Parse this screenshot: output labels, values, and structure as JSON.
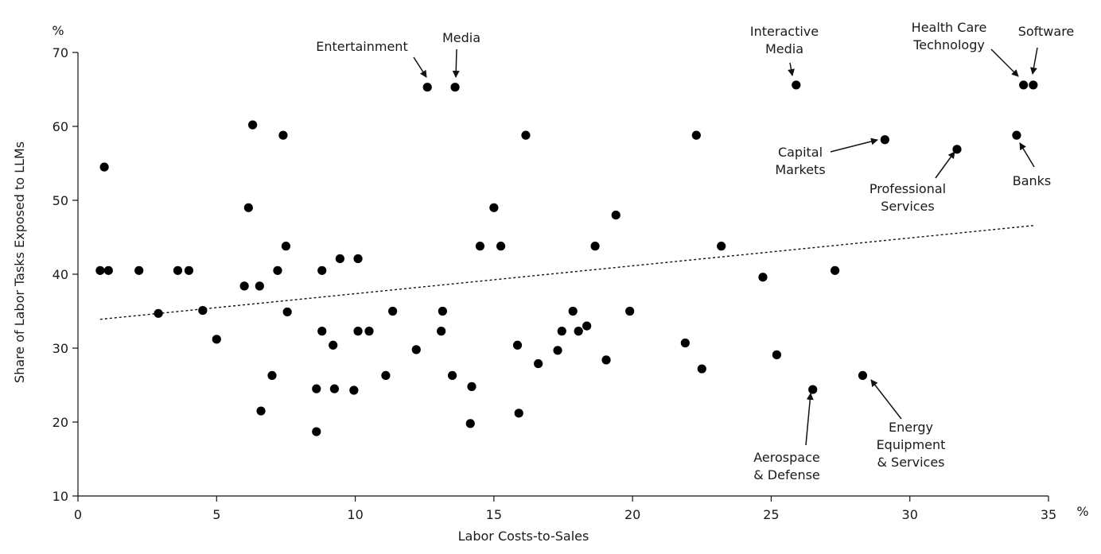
{
  "chart_data": {
    "type": "scatter",
    "title": "",
    "xlabel": "Labor Costs-to-Sales",
    "ylabel": "Share of Labor Tasks Exposed to LLMs",
    "x_unit": "%",
    "y_unit": "%",
    "xlim": [
      0,
      35
    ],
    "ylim": [
      10,
      70
    ],
    "xticks": [
      0,
      5,
      10,
      15,
      20,
      25,
      30,
      35
    ],
    "yticks": [
      10,
      20,
      30,
      40,
      50,
      60,
      70
    ],
    "grid": false,
    "legend": "none",
    "trendline": {
      "style": "dotted",
      "from": [
        0.8,
        33.9
      ],
      "to": [
        34.5,
        46.6
      ]
    },
    "points": [
      [
        0.8,
        40.5
      ],
      [
        0.95,
        54.5
      ],
      [
        1.1,
        40.5
      ],
      [
        2.2,
        40.5
      ],
      [
        2.9,
        34.7
      ],
      [
        3.6,
        40.5
      ],
      [
        4.0,
        40.5
      ],
      [
        4.5,
        35.1
      ],
      [
        5.0,
        31.2
      ],
      [
        6.0,
        38.4
      ],
      [
        6.15,
        49.0
      ],
      [
        6.3,
        60.2
      ],
      [
        6.55,
        38.4
      ],
      [
        6.6,
        21.5
      ],
      [
        7.0,
        26.3
      ],
      [
        7.2,
        40.5
      ],
      [
        7.4,
        58.8
      ],
      [
        7.5,
        43.8
      ],
      [
        7.55,
        34.9
      ],
      [
        8.6,
        24.5
      ],
      [
        8.6,
        18.7
      ],
      [
        8.8,
        40.5
      ],
      [
        8.8,
        32.3
      ],
      [
        9.2,
        30.4
      ],
      [
        9.25,
        24.5
      ],
      [
        9.45,
        42.1
      ],
      [
        9.95,
        24.3
      ],
      [
        10.1,
        32.3
      ],
      [
        10.1,
        42.1
      ],
      [
        10.5,
        32.3
      ],
      [
        11.1,
        26.3
      ],
      [
        11.35,
        35.0
      ],
      [
        12.2,
        29.8
      ],
      [
        12.6,
        65.3
      ],
      [
        13.1,
        32.3
      ],
      [
        13.15,
        35.0
      ],
      [
        13.5,
        26.3
      ],
      [
        13.6,
        65.3
      ],
      [
        14.15,
        19.8
      ],
      [
        14.2,
        24.8
      ],
      [
        14.5,
        43.8
      ],
      [
        15.0,
        49.0
      ],
      [
        15.25,
        43.8
      ],
      [
        15.85,
        30.4
      ],
      [
        15.9,
        21.2
      ],
      [
        16.15,
        58.8
      ],
      [
        16.6,
        27.9
      ],
      [
        17.3,
        29.7
      ],
      [
        17.45,
        32.3
      ],
      [
        17.85,
        35.0
      ],
      [
        18.05,
        32.3
      ],
      [
        18.35,
        33.0
      ],
      [
        18.65,
        43.8
      ],
      [
        19.05,
        28.4
      ],
      [
        19.4,
        48.0
      ],
      [
        19.9,
        35.0
      ],
      [
        21.9,
        30.7
      ],
      [
        22.3,
        58.8
      ],
      [
        22.5,
        27.2
      ],
      [
        23.2,
        43.8
      ],
      [
        24.7,
        39.6
      ],
      [
        25.2,
        29.1
      ],
      [
        25.9,
        65.6
      ],
      [
        26.5,
        24.4
      ],
      [
        27.3,
        40.5
      ],
      [
        28.3,
        26.3
      ],
      [
        29.1,
        58.2
      ],
      [
        31.7,
        56.9
      ],
      [
        33.85,
        58.8
      ],
      [
        34.1,
        65.6
      ],
      [
        34.45,
        65.6
      ]
    ],
    "annotations": [
      {
        "lines": [
          "Entertainment"
        ],
        "point": [
          12.6,
          65.3
        ]
      },
      {
        "lines": [
          "Media"
        ],
        "point": [
          13.6,
          65.3
        ]
      },
      {
        "lines": [
          "Interactive",
          "Media"
        ],
        "point": [
          25.9,
          65.6
        ]
      },
      {
        "lines": [
          "Health Care",
          "Technology"
        ],
        "point": [
          34.1,
          65.6
        ]
      },
      {
        "lines": [
          "Software"
        ],
        "point": [
          34.45,
          65.6
        ]
      },
      {
        "lines": [
          "Capital",
          "Markets"
        ],
        "point": [
          29.1,
          58.2
        ]
      },
      {
        "lines": [
          "Professional",
          "Services"
        ],
        "point": [
          31.7,
          56.9
        ]
      },
      {
        "lines": [
          "Banks"
        ],
        "point": [
          33.85,
          58.8
        ]
      },
      {
        "lines": [
          "Aerospace",
          "& Defense"
        ],
        "point": [
          26.5,
          24.4
        ]
      },
      {
        "lines": [
          "Energy",
          "Equipment",
          "& Services"
        ],
        "point": [
          28.3,
          26.3
        ]
      }
    ]
  }
}
